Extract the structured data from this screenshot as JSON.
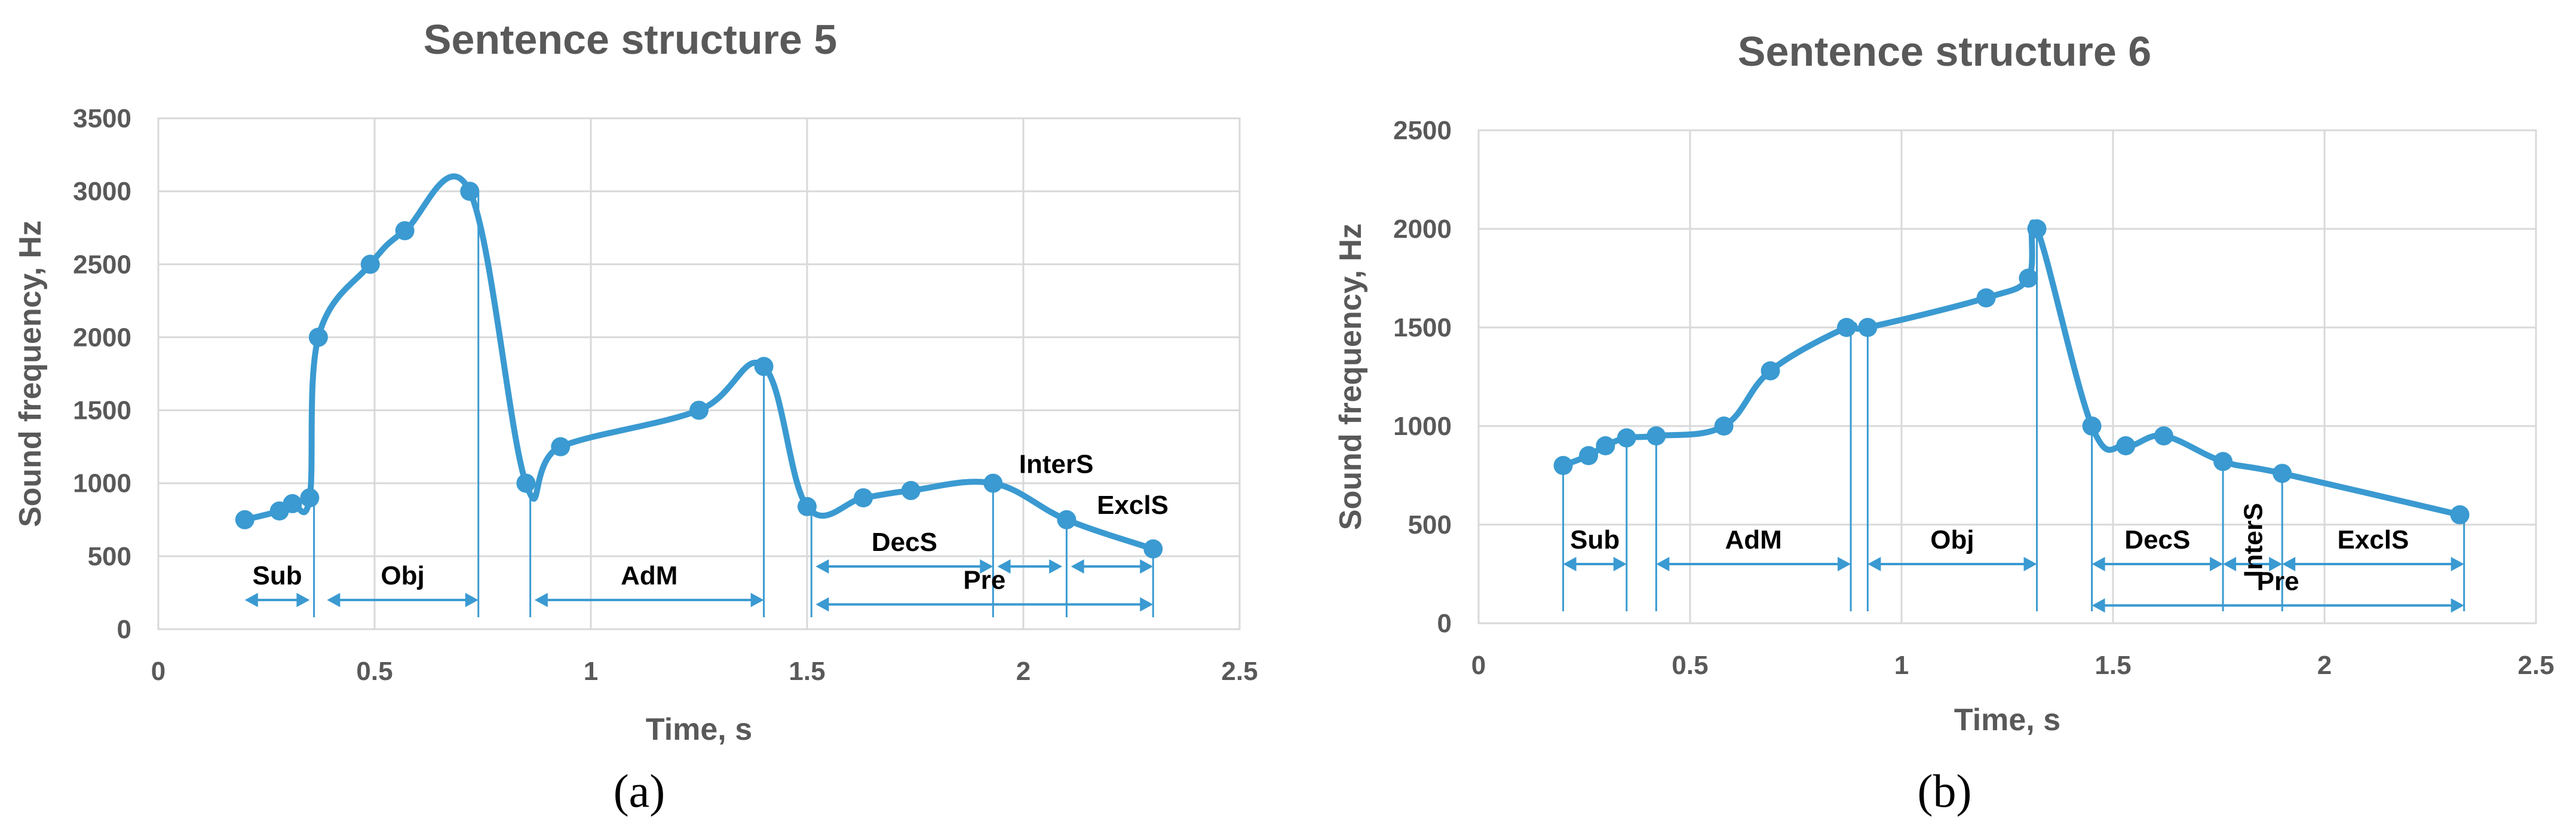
{
  "colors": {
    "series": "#3a9ad1",
    "grid": "#d9d9d9",
    "text": "#595959"
  },
  "chart_data": [
    {
      "type": "line",
      "panel_label": "(a)",
      "title": "Sentence structure 5",
      "xlabel": "Time, s",
      "ylabel": "Sound frequency, Hz",
      "xlim": [
        0,
        2.5
      ],
      "ylim": [
        0,
        3500
      ],
      "xticks": [
        0,
        0.5,
        1,
        1.5,
        2,
        2.5
      ],
      "xtick_labels": [
        "0",
        "0.5",
        "1",
        "1.5",
        "2",
        "2.5"
      ],
      "yticks": [
        0,
        500,
        1000,
        1500,
        2000,
        2500,
        3000,
        3500
      ],
      "ytick_labels": [
        "0",
        "500",
        "1000",
        "1500",
        "2000",
        "2500",
        "3000",
        "3500"
      ],
      "grid": true,
      "series": [
        {
          "name": "Sentence structure 5",
          "x": [
            0.2,
            0.28,
            0.31,
            0.35,
            0.37,
            0.49,
            0.57,
            0.72,
            0.85,
            0.93,
            1.25,
            1.4,
            1.5,
            1.63,
            1.74,
            1.93,
            2.1,
            2.3
          ],
          "y": [
            750,
            810,
            860,
            900,
            2000,
            2500,
            2730,
            3000,
            1000,
            1250,
            1500,
            1800,
            840,
            900,
            950,
            1000,
            750,
            550
          ]
        }
      ],
      "drop_lines_x": [
        0.36,
        0.74,
        0.86,
        1.4,
        1.51,
        1.93,
        2.1,
        2.3
      ],
      "annotations": [
        {
          "text": "Sub",
          "x_start": 0.2,
          "x_end": 0.35,
          "y": 200
        },
        {
          "text": "Obj",
          "x_start": 0.39,
          "x_end": 0.74,
          "y": 200
        },
        {
          "text": "AdM",
          "x_start": 0.87,
          "x_end": 1.4,
          "y": 200
        },
        {
          "text": "DecS",
          "x_start": 1.52,
          "x_end": 1.93,
          "y": 430
        },
        {
          "text": "",
          "x_start": 1.94,
          "x_end": 2.09,
          "y": 430
        },
        {
          "text": "",
          "x_start": 2.11,
          "x_end": 2.3,
          "y": 430
        },
        {
          "text": "Pre",
          "x_start": 1.52,
          "x_end": 2.3,
          "y": 170
        },
        {
          "text": "InterS",
          "x": 1.99,
          "y": 1070
        },
        {
          "text": "ExclS",
          "x": 2.17,
          "y": 790
        }
      ]
    },
    {
      "type": "line",
      "panel_label": "(b)",
      "title": "Sentence structure 6",
      "xlabel": "Time, s",
      "ylabel": "Sound frequency, Hz",
      "xlim": [
        0,
        2.5
      ],
      "ylim": [
        0,
        2500
      ],
      "xticks": [
        0,
        0.5,
        1,
        1.5,
        2,
        2.5
      ],
      "xtick_labels": [
        "0",
        "0.5",
        "1",
        "1.5",
        "2",
        "2.5"
      ],
      "yticks": [
        0,
        500,
        1000,
        1500,
        2000,
        2500
      ],
      "ytick_labels": [
        "0",
        "500",
        "1000",
        "1500",
        "2000",
        "2500"
      ],
      "grid": true,
      "series": [
        {
          "name": "Sentence structure 6",
          "x": [
            0.2,
            0.26,
            0.3,
            0.35,
            0.42,
            0.58,
            0.69,
            0.87,
            0.92,
            1.2,
            1.3,
            1.32,
            1.45,
            1.53,
            1.62,
            1.76,
            1.9,
            2.32
          ],
          "y": [
            800,
            850,
            900,
            940,
            950,
            1000,
            1280,
            1500,
            1500,
            1650,
            1750,
            2000,
            1000,
            900,
            950,
            820,
            760,
            550
          ]
        }
      ],
      "drop_lines_x": [
        0.2,
        0.35,
        0.42,
        0.88,
        0.92,
        1.32,
        1.45,
        1.76,
        1.9,
        2.33
      ],
      "annotations": [
        {
          "text": "Sub",
          "x_start": 0.2,
          "x_end": 0.35,
          "y": 300
        },
        {
          "text": "AdM",
          "x_start": 0.42,
          "x_end": 0.88,
          "y": 300
        },
        {
          "text": "Obj",
          "x_start": 0.92,
          "x_end": 1.32,
          "y": 300
        },
        {
          "text": "DecS",
          "x_start": 1.45,
          "x_end": 1.76,
          "y": 300
        },
        {
          "text": "InterS",
          "x_start": 1.76,
          "x_end": 1.9,
          "y": 300,
          "rotated": true
        },
        {
          "text": "ExclS",
          "x_start": 1.9,
          "x_end": 2.33,
          "y": 300
        },
        {
          "text": "Pre",
          "x_start": 1.45,
          "x_end": 2.33,
          "y": 90
        }
      ]
    }
  ]
}
